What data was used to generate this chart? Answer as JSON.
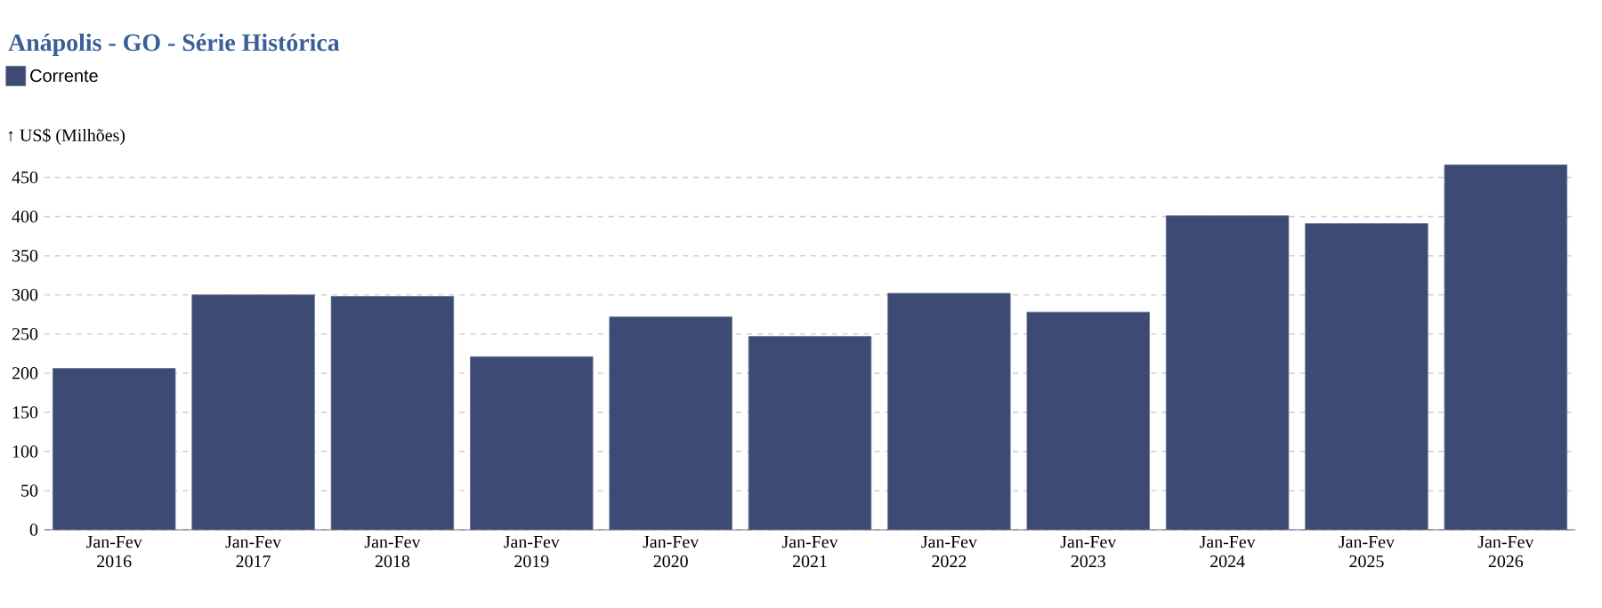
{
  "chart_data": {
    "type": "bar",
    "title": "Anápolis - GO - Série Histórica",
    "ylabel": "↑ US$ (Milhões)",
    "categories": [
      "Jan-Fev 2016",
      "Jan-Fev 2017",
      "Jan-Fev 2018",
      "Jan-Fev 2019",
      "Jan-Fev 2020",
      "Jan-Fev 2021",
      "Jan-Fev 2022",
      "Jan-Fev 2023",
      "Jan-Fev 2024",
      "Jan-Fev 2025",
      "Jan-Fev 2026"
    ],
    "series": [
      {
        "name": "Corrente",
        "color": "#3c4a74",
        "values": [
          206,
          300,
          298,
          221,
          272,
          247,
          302,
          278,
          401,
          391,
          466
        ]
      }
    ],
    "ylim": [
      0,
      470
    ],
    "yticks": [
      0,
      50,
      100,
      150,
      200,
      250,
      300,
      350,
      400,
      450
    ],
    "grid": "y",
    "legend": "top left"
  }
}
